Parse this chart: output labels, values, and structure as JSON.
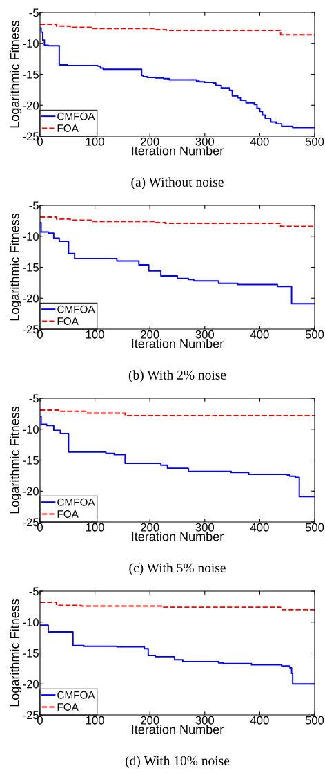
{
  "chart_data": [
    {
      "type": "step",
      "title": "(a) Without noise",
      "xlabel": "Iteration Number",
      "ylabel": "Logarithmic Fitness",
      "xlim": [
        0,
        500
      ],
      "xticks": [
        0,
        100,
        200,
        300,
        400,
        500
      ],
      "ylim": [
        -25,
        -5
      ],
      "yticks": [
        -25,
        -20,
        -15,
        -10,
        -5
      ],
      "grid": false,
      "legend": "bottom left",
      "series": [
        {
          "name": "CMFOA",
          "color": "#0000ff",
          "line_style": "solid",
          "x": [
            0,
            2,
            5,
            8,
            15,
            35,
            50,
            105,
            110,
            115,
            185,
            188,
            195,
            210,
            225,
            235,
            285,
            290,
            300,
            315,
            320,
            330,
            345,
            350,
            360,
            365,
            375,
            390,
            395,
            400,
            405,
            410,
            420,
            430,
            440,
            460,
            500
          ],
          "values": [
            -7.5,
            -8.2,
            -9.5,
            -10.3,
            -10.4,
            -13.5,
            -13.6,
            -13.7,
            -14.0,
            -14.2,
            -15.2,
            -15.4,
            -15.5,
            -15.6,
            -15.7,
            -15.9,
            -16.1,
            -16.2,
            -16.3,
            -16.4,
            -16.8,
            -17.2,
            -17.6,
            -18.5,
            -18.8,
            -19.2,
            -19.6,
            -19.9,
            -20.5,
            -21.0,
            -21.6,
            -22.1,
            -22.7,
            -23.0,
            -23.4,
            -23.6,
            -23.6
          ]
        },
        {
          "name": "FOA",
          "color": "#ff0000",
          "line_style": "dashed",
          "x": [
            0,
            30,
            55,
            95,
            210,
            230,
            438,
            500
          ],
          "values": [
            -6.9,
            -7.2,
            -7.4,
            -7.6,
            -7.8,
            -7.9,
            -8.6,
            -8.6
          ]
        }
      ]
    },
    {
      "type": "step",
      "title": "(b) With 2% noise",
      "xlabel": "Iteration Number",
      "ylabel": "Logarithmic Fitness",
      "xlim": [
        0,
        500
      ],
      "xticks": [
        0,
        100,
        200,
        300,
        400,
        500
      ],
      "ylim": [
        -25,
        -5
      ],
      "yticks": [
        -25,
        -20,
        -15,
        -10,
        -5
      ],
      "grid": false,
      "legend": "bottom left",
      "series": [
        {
          "name": "CMFOA",
          "color": "#0000ff",
          "line_style": "solid",
          "x": [
            0,
            2,
            15,
            25,
            35,
            52,
            63,
            140,
            180,
            198,
            220,
            250,
            270,
            280,
            325,
            360,
            432,
            458,
            500
          ],
          "values": [
            -7.8,
            -9.3,
            -9.5,
            -10.3,
            -10.8,
            -12.8,
            -13.6,
            -14.0,
            -14.6,
            -15.6,
            -16.4,
            -16.8,
            -17.0,
            -17.2,
            -17.6,
            -17.8,
            -18.1,
            -20.9,
            -20.9
          ]
        },
        {
          "name": "FOA",
          "color": "#ff0000",
          "line_style": "dashed",
          "x": [
            0,
            30,
            55,
            95,
            210,
            228,
            438,
            500
          ],
          "values": [
            -6.9,
            -7.2,
            -7.4,
            -7.6,
            -7.8,
            -7.9,
            -8.4,
            -8.4
          ]
        }
      ]
    },
    {
      "type": "step",
      "title": "(c) With 5% noise",
      "xlabel": "Iteration Number",
      "ylabel": "Logarithmic Fitness",
      "xlim": [
        0,
        500
      ],
      "xticks": [
        0,
        100,
        200,
        300,
        400,
        500
      ],
      "ylim": [
        -25,
        -5
      ],
      "yticks": [
        -25,
        -20,
        -15,
        -10,
        -5
      ],
      "grid": false,
      "legend": "bottom left",
      "series": [
        {
          "name": "CMFOA",
          "color": "#0000ff",
          "line_style": "solid",
          "x": [
            0,
            2,
            12,
            25,
            37,
            52,
            120,
            135,
            155,
            220,
            232,
            270,
            348,
            380,
            450,
            455,
            465,
            472,
            500
          ],
          "values": [
            -7.9,
            -9.2,
            -9.4,
            -10.2,
            -10.7,
            -13.7,
            -13.9,
            -14.1,
            -15.5,
            -15.8,
            -16.3,
            -16.8,
            -17.0,
            -17.3,
            -17.4,
            -17.6,
            -17.8,
            -20.9,
            -20.9
          ]
        },
        {
          "name": "FOA",
          "color": "#ff0000",
          "line_style": "dashed",
          "x": [
            0,
            35,
            85,
            155,
            500
          ],
          "values": [
            -6.9,
            -7.1,
            -7.4,
            -7.8,
            -7.8
          ]
        }
      ]
    },
    {
      "type": "step",
      "title": "(d) With 10% noise",
      "xlabel": "Iteration Number",
      "ylabel": "Logarithmic Fitness",
      "xlim": [
        0,
        500
      ],
      "xticks": [
        0,
        100,
        200,
        300,
        400,
        500
      ],
      "ylim": [
        -25,
        -5
      ],
      "yticks": [
        -25,
        -20,
        -15,
        -10,
        -5
      ],
      "grid": false,
      "legend": "bottom left",
      "series": [
        {
          "name": "CMFOA",
          "color": "#0000ff",
          "line_style": "solid",
          "x": [
            0,
            15,
            60,
            80,
            140,
            190,
            197,
            210,
            245,
            260,
            325,
            333,
            385,
            440,
            455,
            458,
            460,
            500
          ],
          "values": [
            -10.5,
            -11.6,
            -13.8,
            -13.9,
            -14.0,
            -14.3,
            -15.4,
            -15.6,
            -16.1,
            -16.4,
            -16.6,
            -16.7,
            -16.9,
            -17.1,
            -17.4,
            -18.3,
            -20.0,
            -20.0
          ]
        },
        {
          "name": "FOA",
          "color": "#ff0000",
          "line_style": "dashed",
          "x": [
            0,
            30,
            75,
            225,
            438,
            500
          ],
          "values": [
            -6.8,
            -7.3,
            -7.4,
            -7.6,
            -8.0,
            -8.0
          ]
        }
      ]
    }
  ]
}
